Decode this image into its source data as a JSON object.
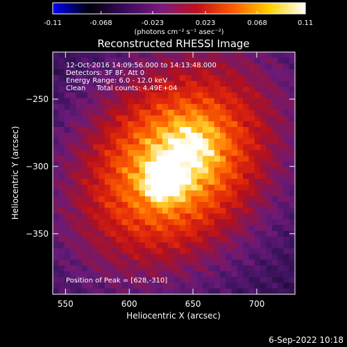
{
  "colorbar": {
    "ticks": [
      "-0.11",
      "-0.068",
      "-0.023",
      "0.023",
      "0.068",
      "0.11"
    ],
    "unit_label": "(photons cm⁻² s⁻¹ asec⁻²)"
  },
  "footer": {
    "timestamp": "6-Sep-2022 10:18"
  },
  "chart_data": {
    "type": "heatmap",
    "title": "Reconstructed RHESSI Image",
    "xlabel": "Heliocentric X (arcsec)",
    "ylabel": "Heliocentric Y (arcsec)",
    "xlim": [
      540,
      730
    ],
    "ylim": [
      -395,
      -215
    ],
    "xticks": [
      550,
      600,
      650,
      700
    ],
    "yticks": [
      -250,
      -300,
      -350
    ],
    "colorbar_range": [
      -0.11,
      0.11
    ],
    "colormap": [
      "#0000ff",
      "#00000a",
      "#3a0a5c",
      "#7a1a7e",
      "#c0101e",
      "#ff5a00",
      "#ffd000",
      "#ffffff"
    ],
    "peak": [
      628,
      -310
    ],
    "annotations": [
      "12-Oct-2016 14:09:56.000 to 14:13:48.000",
      "Detectors: 3F 8F, Att 0",
      "Energy Range: 6.0 - 12.0 keV",
      "Clean     Total counts: 4.49E+04",
      "Position of Peak = [628,-310]"
    ]
  }
}
